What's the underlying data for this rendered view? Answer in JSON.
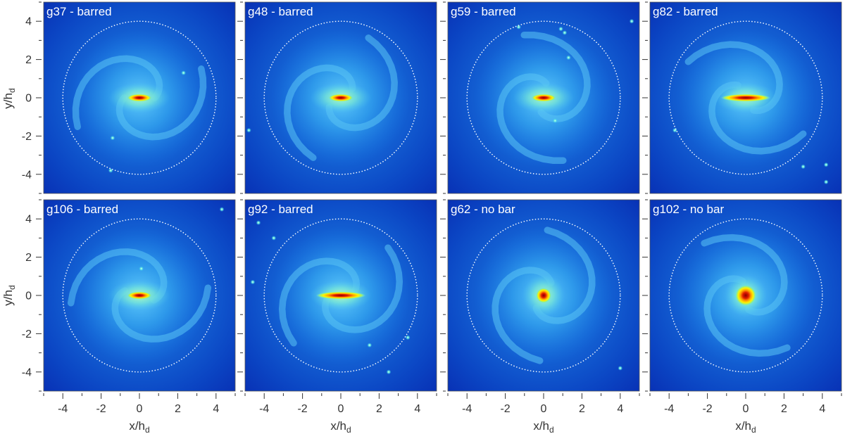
{
  "figure": {
    "x_axis_label": "x/h",
    "y_axis_label": "y/h",
    "axis_label_subscript": "d",
    "tick_values": [
      -4,
      -2,
      0,
      2,
      4
    ],
    "axis_range": [
      -5,
      5
    ],
    "circle_radius": 4
  },
  "panels": [
    {
      "name": "g37",
      "title": "g37 - barred",
      "barred": true,
      "clumps": [
        [
          2.3,
          1.3
        ],
        [
          -1.4,
          -2.1
        ],
        [
          -1.5,
          -3.8
        ]
      ]
    },
    {
      "name": "g48",
      "title": "g48 - barred",
      "barred": true,
      "clumps": [
        [
          -4.8,
          -1.7
        ]
      ]
    },
    {
      "name": "g59",
      "title": "g59 - barred",
      "barred": true,
      "clumps": [
        [
          -1.3,
          3.7
        ],
        [
          0.9,
          3.6
        ],
        [
          1.1,
          3.4
        ],
        [
          1.3,
          2.1
        ],
        [
          0.6,
          -1.2
        ],
        [
          4.6,
          4.0
        ]
      ]
    },
    {
      "name": "g82",
      "title": "g82 - barred",
      "barred": true,
      "clumps": [
        [
          -3.7,
          -1.7
        ],
        [
          3.0,
          -3.6
        ],
        [
          4.2,
          -3.5
        ],
        [
          4.2,
          -4.4
        ]
      ]
    },
    {
      "name": "g106",
      "title": "g106 - barred",
      "barred": true,
      "clumps": [
        [
          0.1,
          1.4
        ],
        [
          4.3,
          4.5
        ]
      ]
    },
    {
      "name": "g92",
      "title": "g92 - barred",
      "barred": true,
      "clumps": [
        [
          -4.3,
          3.8
        ],
        [
          -3.5,
          3.0
        ],
        [
          -4.6,
          0.7
        ],
        [
          1.5,
          -2.6
        ],
        [
          3.5,
          -2.2
        ],
        [
          2.5,
          -4.0
        ]
      ]
    },
    {
      "name": "g62",
      "title": "g62 - no bar",
      "barred": false,
      "clumps": [
        [
          4.0,
          -3.8
        ]
      ]
    },
    {
      "name": "g102",
      "title": "g102 - no bar",
      "barred": false,
      "clumps": []
    }
  ]
}
